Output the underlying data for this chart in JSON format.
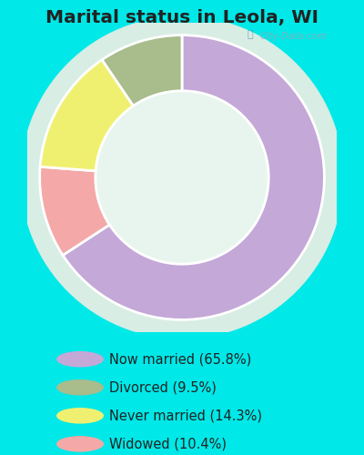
{
  "title": "Marital status in Leola, WI",
  "slices": [
    65.8,
    10.4,
    14.3,
    9.5
  ],
  "labels": [
    "Now married (65.8%)",
    "Divorced (9.5%)",
    "Never married (14.3%)",
    "Widowed (10.4%)"
  ],
  "legend_colors": [
    "#c4a8d8",
    "#a8bc8c",
    "#f0f070",
    "#f4a8a8"
  ],
  "slice_colors": [
    "#c4a8d8",
    "#f4a8a8",
    "#f0f070",
    "#a8bc8c"
  ],
  "outer_bg": "#00e8e8",
  "chart_bg": "#e0f0e8",
  "title_color": "#222222",
  "legend_fontsize": 10.5,
  "title_fontsize": 14.5,
  "watermark": "City-Data.com",
  "donut_width": 0.45,
  "start_angle": 90
}
